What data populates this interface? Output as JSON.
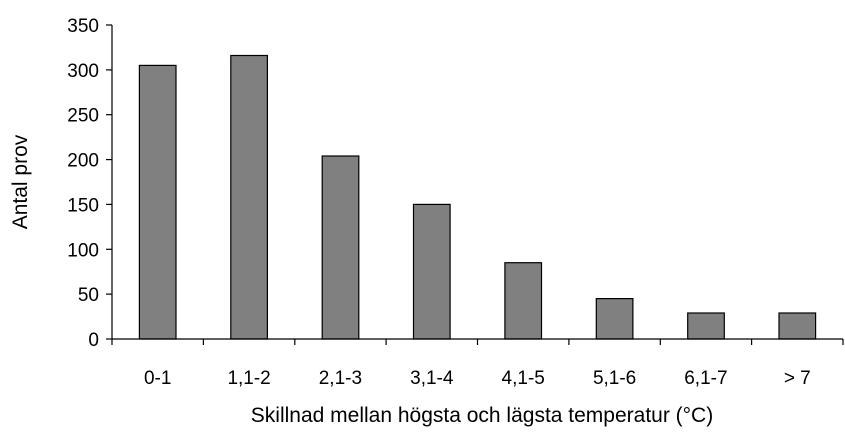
{
  "chart_data": {
    "type": "bar",
    "title": "",
    "xlabel": "Skillnad mellan högsta och lägsta temperatur (°C)",
    "ylabel": "Antal prov",
    "categories": [
      "0-1",
      "1,1-2",
      "2,1-3",
      "3,1-4",
      "4,1-5",
      "5,1-6",
      "6,1-7",
      "> 7"
    ],
    "values": [
      305,
      316,
      204,
      150,
      85,
      45,
      29,
      29
    ],
    "ylim": [
      0,
      350
    ],
    "yticks": [
      0,
      50,
      100,
      150,
      200,
      250,
      300,
      350
    ],
    "grid": false,
    "legend": "none",
    "bar_color": "#808080",
    "bar_edge_color": "#000000"
  }
}
